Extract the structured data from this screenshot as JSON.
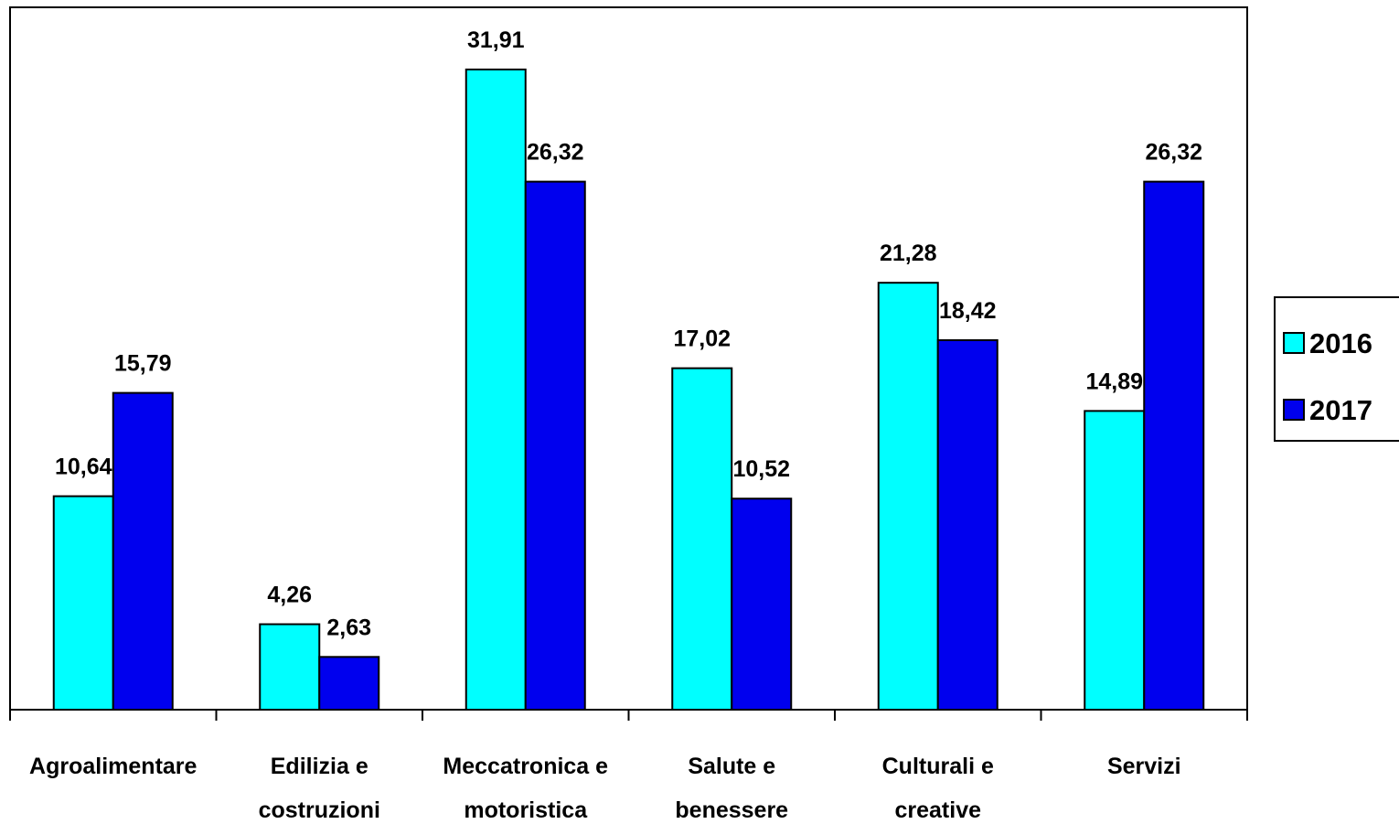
{
  "chart_data": {
    "type": "bar",
    "categories": [
      [
        "Agroalimentare"
      ],
      [
        "Edilizia e",
        "costruzioni"
      ],
      [
        "Meccatronica e",
        "motoristica"
      ],
      [
        "Salute e",
        "benessere"
      ],
      [
        "Culturali e",
        "creative"
      ],
      [
        "Servizi"
      ]
    ],
    "series": [
      {
        "name": "2016",
        "color": "#00ffff",
        "values": [
          10.64,
          4.26,
          31.91,
          17.02,
          21.28,
          14.89
        ],
        "labels": [
          "10,64",
          "4,26",
          "31,91",
          "17,02",
          "21,28",
          "14,89"
        ]
      },
      {
        "name": "2017",
        "color": "#0000ee",
        "values": [
          15.79,
          2.63,
          26.32,
          10.52,
          18.42,
          26.32
        ],
        "labels": [
          "15,79",
          "2,63",
          "26,32",
          "10,52",
          "18,42",
          "26,32"
        ]
      }
    ],
    "ylim": [
      0,
      35
    ],
    "grid": false,
    "legend_position": "right"
  }
}
